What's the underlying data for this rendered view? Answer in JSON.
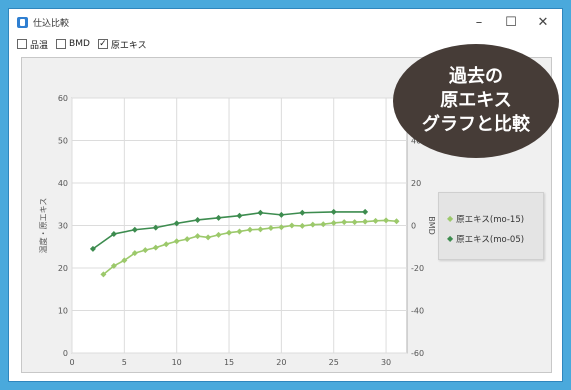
{
  "window": {
    "title": "仕込比較",
    "minimize_label": "–",
    "maximize_label": "☐",
    "close_label": "✕"
  },
  "toolbar": {
    "checkboxes": [
      {
        "label": "品温",
        "checked": false
      },
      {
        "label": "BMD",
        "checked": false
      },
      {
        "label": "原エキス",
        "checked": true
      }
    ]
  },
  "callout": {
    "lines": [
      "過去の",
      "原エキス",
      "グラフと比較"
    ]
  },
  "chart_data": {
    "type": "line",
    "ylabel_left": "温度・原エキス",
    "ylabel_right": "BMD",
    "x_ticks": [
      "0",
      "5",
      "10",
      "15",
      "20",
      "25",
      "30"
    ],
    "y_left_ticks": [
      "0",
      "10",
      "20",
      "30",
      "40",
      "50",
      "60"
    ],
    "y_right_ticks": [
      "-60",
      "-40",
      "-20",
      "0",
      "20",
      "40"
    ],
    "xlim": [
      0,
      32
    ],
    "ylim_left": [
      0,
      60
    ],
    "ylim_right": [
      -60,
      60
    ],
    "grid": true,
    "legend_position": "right",
    "series": [
      {
        "name": "原エキス(mo-15)",
        "color": "#9cc96b",
        "axis": "left",
        "x": [
          3,
          4,
          5,
          6,
          7,
          8,
          9,
          10,
          11,
          12,
          13,
          14,
          15,
          16,
          17,
          18,
          19,
          20,
          21,
          22,
          23,
          24,
          25,
          26,
          27,
          28,
          29,
          30,
          31
        ],
        "y": [
          18.5,
          20.5,
          21.8,
          23.5,
          24.2,
          24.8,
          25.6,
          26.3,
          26.8,
          27.5,
          27.2,
          27.8,
          28.3,
          28.6,
          29.0,
          29.1,
          29.4,
          29.6,
          30.0,
          29.9,
          30.2,
          30.3,
          30.6,
          30.8,
          30.8,
          30.9,
          31.1,
          31.2,
          31.0
        ]
      },
      {
        "name": "原エキス(mo-05)",
        "color": "#3d8c4f",
        "axis": "left",
        "x": [
          2,
          4,
          6,
          8,
          10,
          12,
          14,
          16,
          18,
          20,
          22,
          25,
          28
        ],
        "y": [
          24.5,
          28.0,
          29.0,
          29.5,
          30.5,
          31.3,
          31.8,
          32.3,
          33.0,
          32.5,
          33.0,
          33.2,
          33.2
        ]
      }
    ]
  }
}
